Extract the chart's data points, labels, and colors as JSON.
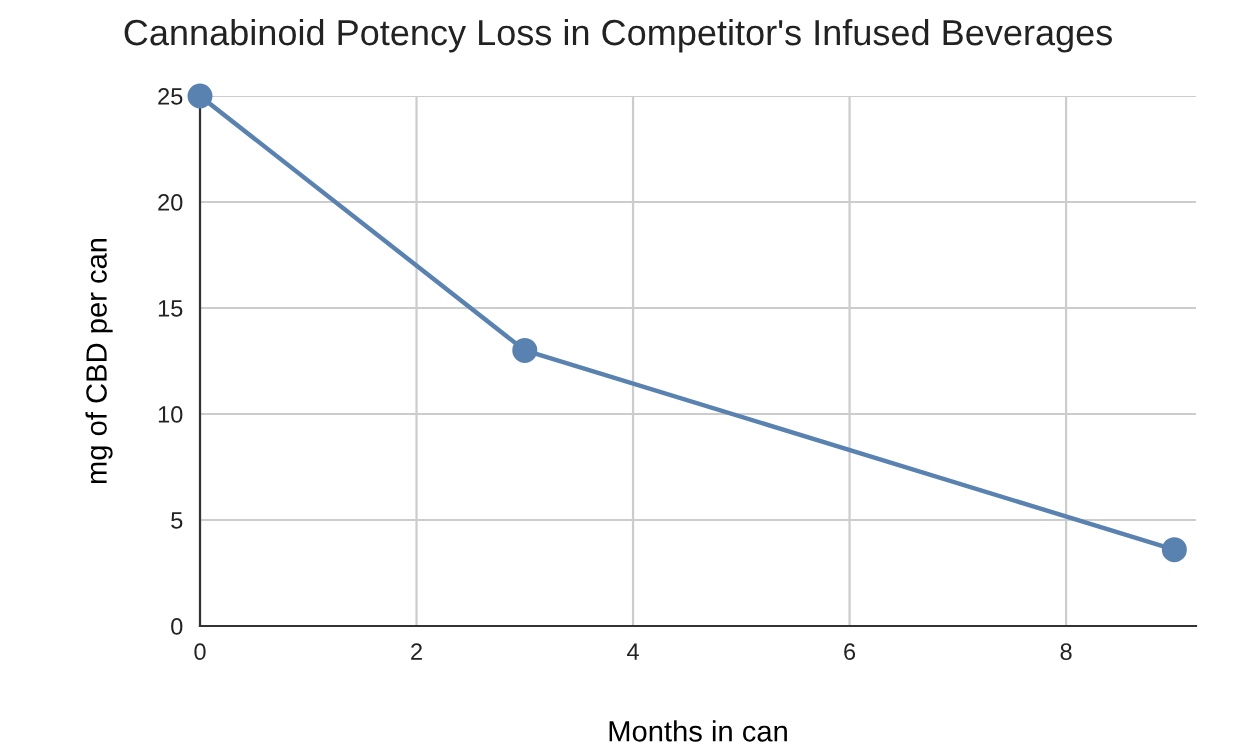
{
  "chart_data": {
    "type": "line",
    "title": "Cannabinoid Potency Loss in Competitor's Infused Beverages",
    "xlabel": "Months in can",
    "ylabel": "mg of CBD per can",
    "x": [
      0,
      3,
      9
    ],
    "series": [
      {
        "color": "#5a82b0",
        "values": [
          25,
          13,
          3.6
        ]
      }
    ],
    "xlim": [
      0,
      9.2
    ],
    "xticks": [
      0,
      2,
      4,
      6,
      8
    ],
    "ylim": [
      0,
      25
    ],
    "yticks": [
      0,
      5,
      10,
      15,
      20,
      25
    ],
    "grid": true,
    "marker": "circle",
    "line_style": "solid",
    "legend": false
  }
}
